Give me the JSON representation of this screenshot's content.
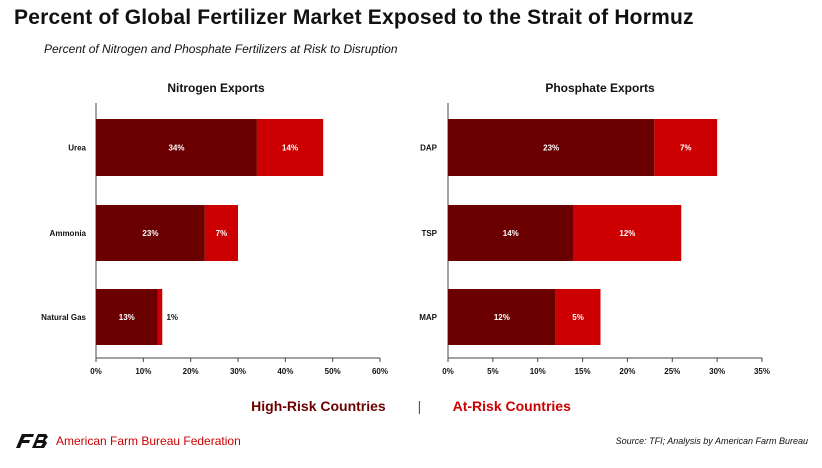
{
  "header": {
    "title": "Percent of Global Fertilizer Market Exposed to the Strait of Hormuz",
    "subtitle": "Percent of Nitrogen and Phosphate Fertilizers at Risk to Disruption"
  },
  "legend": {
    "high_risk": "High-Risk Countries",
    "separator": "|",
    "at_risk": "At-Risk Countries"
  },
  "footer": {
    "organization": "American Farm Bureau Federation",
    "logo_text": "FB",
    "source": "Source: TFI; Analysis by American Farm Bureau"
  },
  "colors": {
    "high_risk": "#6b0000",
    "at_risk": "#cc0000"
  },
  "chart_data": [
    {
      "type": "bar",
      "orientation": "horizontal",
      "stacked": true,
      "title": "Nitrogen Exports",
      "categories": [
        "Urea",
        "Ammonia",
        "Natural Gas"
      ],
      "series": [
        {
          "name": "High-Risk Countries",
          "values": [
            34,
            23,
            13
          ],
          "labels": [
            "34%",
            "23%",
            "13%"
          ]
        },
        {
          "name": "At-Risk Countries",
          "values": [
            14,
            7,
            1
          ],
          "labels": [
            "14%",
            "7%",
            "1%"
          ]
        }
      ],
      "xlim": [
        0,
        60
      ],
      "xticks": [
        0,
        10,
        20,
        30,
        40,
        50,
        60
      ],
      "xtick_labels": [
        "0%",
        "10%",
        "20%",
        "30%",
        "40%",
        "50%",
        "60%"
      ]
    },
    {
      "type": "bar",
      "orientation": "horizontal",
      "stacked": true,
      "title": "Phosphate Exports",
      "categories": [
        "DAP",
        "TSP",
        "MAP"
      ],
      "series": [
        {
          "name": "High-Risk Countries",
          "values": [
            23,
            14,
            12
          ],
          "labels": [
            "23%",
            "14%",
            "12%"
          ]
        },
        {
          "name": "At-Risk Countries",
          "values": [
            7,
            12,
            5
          ],
          "labels": [
            "7%",
            "12%",
            "5%"
          ]
        }
      ],
      "xlim": [
        0,
        35
      ],
      "xticks": [
        0,
        5,
        10,
        15,
        20,
        25,
        30,
        35
      ],
      "xtick_labels": [
        "0%",
        "5%",
        "10%",
        "15%",
        "20%",
        "25%",
        "30%",
        "35%"
      ]
    }
  ]
}
